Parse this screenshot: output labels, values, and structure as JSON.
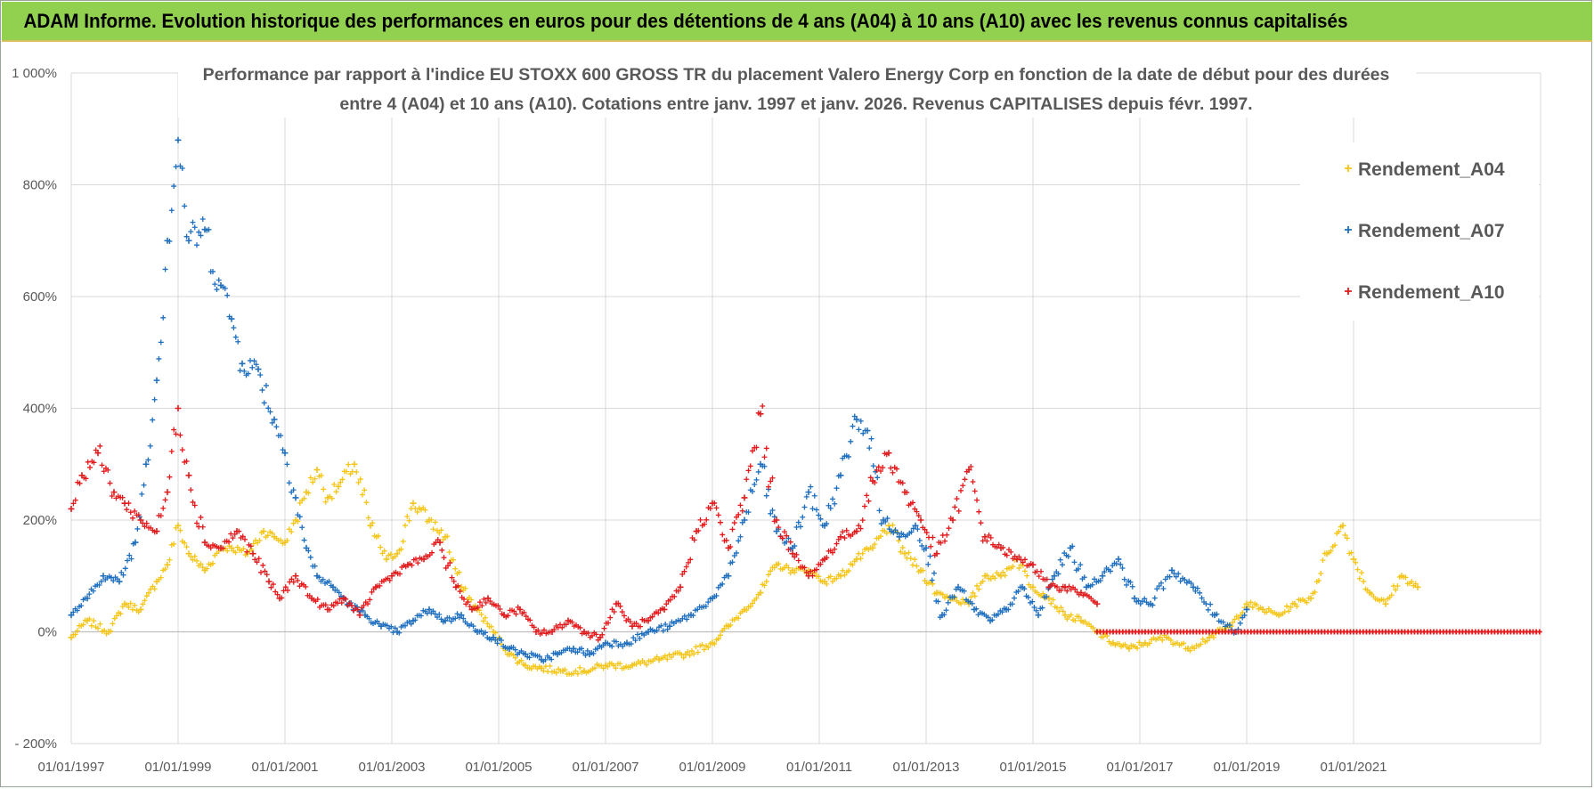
{
  "header": {
    "title": "ADAM Informe. Evolution historique des performances en euros pour des détentions de 4 ans (A04) à 10 ans (A10) avec les revenus connus capitalisés"
  },
  "chart_data": {
    "type": "scatter",
    "title_line1": "Performance par rapport à l'indice EU STOXX 600 GROSS TR  du placement Valero Energy Corp en fonction de la date de début pour des durées",
    "title_line2": "entre 4 (A04) et 10 ans (A10).  Cotations entre janv. 1997 et janv. 2026. Revenus CAPITALISES depuis févr. 1997.",
    "xlabel": "",
    "ylabel": "",
    "xlim": [
      1997.0,
      2024.5
    ],
    "ylim": [
      -200,
      1000
    ],
    "y_ticks": [
      -200,
      0,
      200,
      400,
      600,
      800,
      1000
    ],
    "y_tick_labels": [
      "- 200%",
      "0%",
      "200%",
      "400%",
      "600%",
      "800%",
      "1 000%"
    ],
    "x_ticks": [
      1997,
      1999,
      2001,
      2003,
      2005,
      2007,
      2009,
      2011,
      2013,
      2015,
      2017,
      2019,
      2021
    ],
    "x_tick_labels": [
      "01/01/1997",
      "01/01/1999",
      "01/01/2001",
      "01/01/2003",
      "01/01/2005",
      "01/01/2007",
      "01/01/2009",
      "01/01/2011",
      "01/01/2013",
      "01/01/2015",
      "01/01/2017",
      "01/01/2019",
      "01/01/2021"
    ],
    "legend_position": "top-right",
    "marker": "+",
    "series": [
      {
        "name": "Rendement_A04",
        "color": "#f5c518",
        "x": [
          1997.0,
          1997.3,
          1997.7,
          1998.0,
          1998.3,
          1998.6,
          1998.8,
          1999.0,
          1999.2,
          1999.5,
          1999.8,
          2000.0,
          2000.3,
          2000.6,
          2000.8,
          2001.0,
          2001.2,
          2001.4,
          2001.6,
          2001.8,
          2002.0,
          2002.3,
          2002.6,
          2002.9,
          2003.1,
          2003.4,
          2003.7,
          2004.0,
          2004.3,
          2004.6,
          2004.9,
          2005.2,
          2005.5,
          2005.8,
          2006.2,
          2006.6,
          2007.0,
          2007.5,
          2008.0,
          2008.5,
          2009.0,
          2009.3,
          2009.6,
          2009.9,
          2010.2,
          2010.5,
          2010.8,
          2011.1,
          2011.4,
          2011.7,
          2012.0,
          2012.3,
          2012.6,
          2012.9,
          2013.2,
          2013.5,
          2013.8,
          2014.1,
          2014.4,
          2014.7,
          2015.0,
          2015.3,
          2015.6,
          2015.9,
          2016.2,
          2016.5,
          2016.8,
          2017.1,
          2017.5,
          2017.9,
          2018.3,
          2018.7,
          2019.0,
          2019.3,
          2019.6,
          2019.9,
          2020.2,
          2020.5,
          2020.8,
          2021.0,
          2021.3,
          2021.6,
          2021.9,
          2022.2
        ],
        "values": [
          -10,
          20,
          0,
          50,
          40,
          90,
          120,
          190,
          140,
          110,
          150,
          150,
          140,
          180,
          170,
          160,
          200,
          250,
          290,
          240,
          260,
          300,
          190,
          130,
          140,
          230,
          200,
          170,
          80,
          40,
          0,
          -40,
          -60,
          -65,
          -70,
          -70,
          -60,
          -60,
          -50,
          -40,
          -20,
          10,
          40,
          70,
          120,
          110,
          110,
          90,
          100,
          130,
          150,
          190,
          140,
          110,
          70,
          60,
          50,
          100,
          100,
          130,
          80,
          60,
          30,
          20,
          0,
          -20,
          -30,
          -20,
          -10,
          -30,
          -10,
          10,
          50,
          40,
          30,
          50,
          60,
          140,
          190,
          130,
          70,
          50,
          100,
          80
        ]
      },
      {
        "name": "Rendement_A07",
        "color": "#1f6fbf",
        "x": [
          1997.0,
          1997.3,
          1997.6,
          1997.9,
          1998.2,
          1998.4,
          1998.6,
          1998.8,
          1999.0,
          1999.2,
          1999.5,
          1999.8,
          2000.0,
          2000.2,
          2000.5,
          2000.8,
          2001.0,
          2001.2,
          2001.4,
          2001.6,
          2001.9,
          2002.2,
          2002.5,
          2002.8,
          2003.1,
          2003.4,
          2003.7,
          2004.0,
          2004.3,
          2004.6,
          2004.9,
          2005.2,
          2005.5,
          2005.8,
          2006.1,
          2006.4,
          2006.7,
          2007.0,
          2007.4,
          2007.8,
          2008.2,
          2008.6,
          2009.0,
          2009.3,
          2009.6,
          2009.9,
          2010.2,
          2010.5,
          2010.8,
          2011.1,
          2011.4,
          2011.7,
          2011.9,
          2012.2,
          2012.5,
          2012.8,
          2013.0,
          2013.3,
          2013.6,
          2013.9,
          2014.2,
          2014.5,
          2014.8,
          2015.1,
          2015.4,
          2015.7,
          2016.0,
          2016.3,
          2016.6,
          2016.9,
          2017.2,
          2017.6,
          2018.0,
          2018.4,
          2018.8,
          2019.0
        ],
        "values": [
          30,
          60,
          100,
          90,
          160,
          300,
          450,
          700,
          880,
          700,
          720,
          620,
          560,
          480,
          470,
          380,
          320,
          240,
          150,
          100,
          80,
          50,
          30,
          10,
          0,
          20,
          40,
          20,
          30,
          0,
          -10,
          -30,
          -40,
          -50,
          -40,
          -30,
          -40,
          -20,
          -20,
          0,
          10,
          30,
          60,
          100,
          200,
          300,
          180,
          150,
          250,
          190,
          280,
          380,
          360,
          200,
          170,
          190,
          150,
          30,
          80,
          40,
          20,
          40,
          80,
          30,
          100,
          150,
          80,
          100,
          130,
          60,
          50,
          110,
          80,
          30,
          0,
          40
        ]
      },
      {
        "name": "Rendement_A10",
        "color": "#e31a1c",
        "x": [
          1997.0,
          1997.2,
          1997.5,
          1997.8,
          1998.0,
          1998.3,
          1998.6,
          1998.8,
          1999.0,
          1999.2,
          1999.5,
          1999.8,
          2000.1,
          2000.4,
          2000.7,
          2000.9,
          2001.2,
          2001.5,
          2001.8,
          2002.1,
          2002.4,
          2002.7,
          2003.0,
          2003.3,
          2003.6,
          2003.9,
          2004.2,
          2004.5,
          2004.8,
          2005.1,
          2005.4,
          2005.7,
          2006.0,
          2006.3,
          2006.6,
          2006.9,
          2007.2,
          2007.5,
          2007.8,
          2008.1,
          2008.4,
          2008.7,
          2009.0,
          2009.3,
          2009.6,
          2009.9,
          2010.2,
          2010.5,
          2010.8,
          2011.1,
          2011.4,
          2011.7,
          2012.0,
          2012.3,
          2012.6,
          2012.9,
          2013.2,
          2013.5,
          2013.8,
          2014.1,
          2014.4,
          2014.7,
          2015.0,
          2015.3,
          2015.6,
          2015.9,
          2016.2
        ],
        "values": [
          220,
          280,
          320,
          250,
          230,
          200,
          180,
          250,
          400,
          280,
          160,
          150,
          180,
          140,
          90,
          60,
          100,
          60,
          40,
          60,
          30,
          80,
          100,
          120,
          130,
          160,
          80,
          40,
          60,
          30,
          40,
          0,
          0,
          20,
          0,
          -10,
          50,
          10,
          20,
          40,
          80,
          180,
          230,
          150,
          240,
          390,
          200,
          140,
          100,
          130,
          170,
          180,
          270,
          320,
          250,
          200,
          140,
          200,
          290,
          170,
          150,
          130,
          120,
          80,
          80,
          70,
          50
        ]
      }
    ]
  }
}
